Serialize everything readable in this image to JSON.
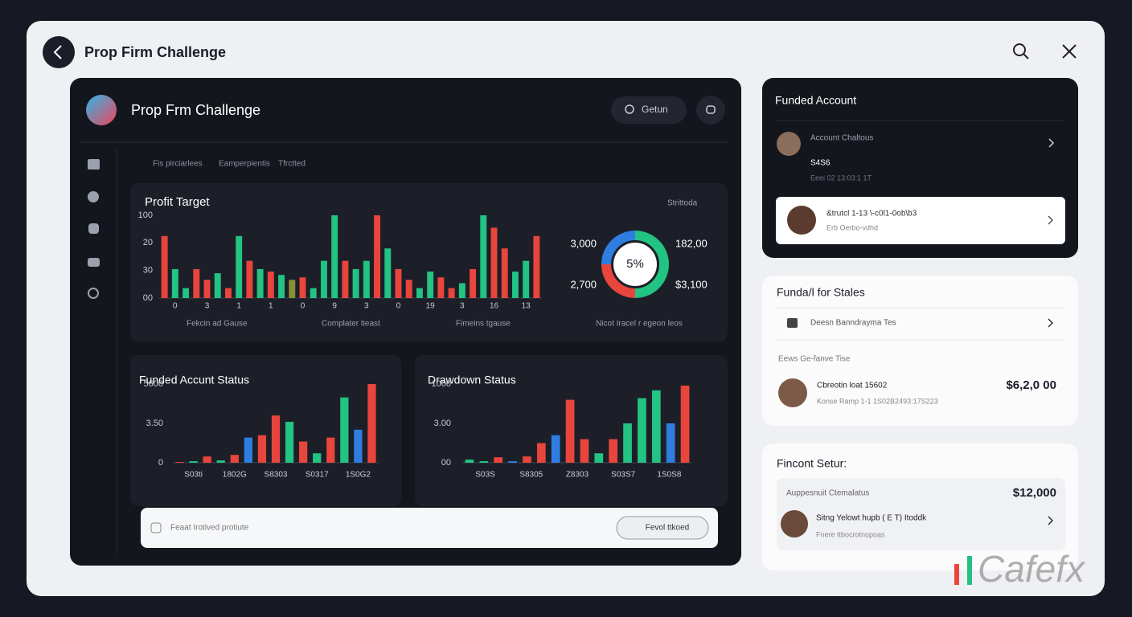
{
  "header": {
    "title": "Prop Firm Challenge"
  },
  "dashboard": {
    "title": "Prop Frm Challenge",
    "search": "Getun",
    "breadcrumbs": [
      "Fis pirciarlees",
      "Eamperpientis",
      "Tfrctted"
    ]
  },
  "profit_target": {
    "type": "bar",
    "title": "Profit Target",
    "dropdown": "Strittoda",
    "y_labels": [
      "100",
      "20",
      "30",
      "00"
    ],
    "x_labels": [
      "0",
      "3",
      "1",
      "1",
      "0",
      "9",
      "3",
      "0",
      "19",
      "3",
      "16",
      "13"
    ],
    "ylim": [
      0,
      100
    ],
    "values": [
      75,
      35,
      12,
      35,
      22,
      30,
      12,
      75,
      45,
      35,
      32,
      28,
      22,
      25,
      12,
      45,
      100,
      45,
      35,
      45,
      100,
      60,
      35,
      22,
      12,
      32,
      25,
      12,
      18,
      35,
      100,
      85,
      60,
      32,
      45,
      75
    ],
    "colors": [
      "#e8453c",
      "#22c383",
      "#22c383",
      "#e8453c",
      "#e8453c",
      "#22c383",
      "#e8453c",
      "#22c383",
      "#e8453c",
      "#22c383",
      "#e8453c",
      "#22c383",
      "#8a8f3a",
      "#e8453c",
      "#22c383",
      "#22c383",
      "#22c383",
      "#e8453c",
      "#22c383",
      "#22c383",
      "#e8453c",
      "#22c383",
      "#e8453c",
      "#e8453c",
      "#22c383",
      "#22c383",
      "#e8453c",
      "#e8453c",
      "#22c383",
      "#e8453c",
      "#22c383",
      "#e8453c",
      "#e8453c",
      "#22c383",
      "#22c383",
      "#e8453c"
    ],
    "legend": [
      "Fekcin ad Gause",
      "Complater tieast",
      "Fimeins tgause"
    ]
  },
  "donut": {
    "type": "pie",
    "center_label": "5%",
    "values": [
      50,
      25,
      25
    ],
    "colors": [
      "#22c383",
      "#e8453c",
      "#2f7de1"
    ],
    "side_labels": [
      "3,000",
      "182,00",
      "2,700",
      "$3,100"
    ],
    "caption": "Nicot Iracel r egeon leos"
  },
  "funded_status": {
    "type": "bar",
    "title": "Funded Accunt Status",
    "y_labels": [
      "5600",
      "3.50",
      "0"
    ],
    "x_labels": [
      "S03ti",
      "1802G",
      "S8303",
      "S0317",
      "1S0G2"
    ],
    "ylim": [
      0,
      100
    ],
    "values": [
      1,
      2,
      8,
      3,
      10,
      32,
      35,
      60,
      52,
      27,
      12,
      32,
      83,
      42,
      100
    ],
    "colors": [
      "#e8453c",
      "#22c383",
      "#e8453c",
      "#22c383",
      "#e8453c",
      "#2f7de1",
      "#e8453c",
      "#e8453c",
      "#22c383",
      "#e8453c",
      "#22c383",
      "#e8453c",
      "#22c383",
      "#2f7de1",
      "#e8453c"
    ]
  },
  "drawdown_status": {
    "type": "bar",
    "title": "Drawdown Status",
    "y_labels": [
      "1000",
      "3.00",
      "00"
    ],
    "x_labels": [
      "S03S",
      "S8305",
      "Z8303",
      "S03S7",
      "1S0S8"
    ],
    "ylim": [
      0,
      100
    ],
    "values": [
      4,
      2,
      7,
      2,
      8,
      25,
      35,
      80,
      30,
      12,
      30,
      50,
      82,
      92,
      50,
      98
    ],
    "colors": [
      "#22c383",
      "#22c383",
      "#e8453c",
      "#2f7de1",
      "#e8453c",
      "#e8453c",
      "#2f7de1",
      "#e8453c",
      "#e8453c",
      "#22c383",
      "#e8453c",
      "#22c383",
      "#22c383",
      "#22c383",
      "#2f7de1",
      "#e8453c"
    ]
  },
  "footer": {
    "input": "Feaat Irotived protiute",
    "button": "Fevol ttkoed"
  },
  "funded_account": {
    "title": "Funded Account",
    "items": [
      {
        "name": "Account Chaltous",
        "value": "S4S6",
        "meta": "Eeei 02 13:03:1 1T"
      },
      {
        "name": "&trutcl 1-13 \\-c0l1-0ob\\b3",
        "meta": "Erb Oerbo-vdhd"
      }
    ]
  },
  "funds_for_sales": {
    "title": "Funda/l for Stales",
    "row": "Deesn Banndrayma Tes",
    "subtitle": "Eews Ge-fanve Tise",
    "person": {
      "name": "Cbreotin loat 15602",
      "meta": "Konse Ramp 1-1 1S02B2493:17S223",
      "amount": "$6,2,0 00"
    }
  },
  "fincont_setup": {
    "title": "Fincont Setur:",
    "label": "Auppesnuit Ctemalatus",
    "amount": "$12,000",
    "person": {
      "name": "Sitng Yelowt hupb ( E T) Itoddk",
      "meta": "Fnere ttbocrotnopoas"
    }
  },
  "watermark": "Cafefx"
}
